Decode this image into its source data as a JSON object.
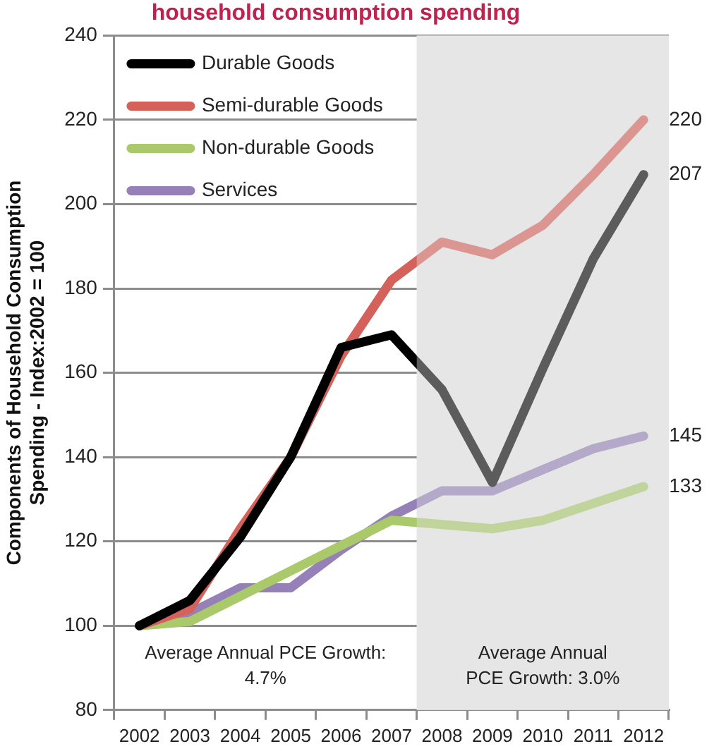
{
  "chart_data": {
    "type": "line",
    "title": "household consumption spending",
    "ylabel": "Components of Household Consumption Spending - Index:2002 = 100",
    "categories": [
      "2002",
      "2003",
      "2004",
      "2005",
      "2006",
      "2007",
      "2008",
      "2009",
      "2010",
      "2011",
      "2012"
    ],
    "series": [
      {
        "name": "Durable Goods",
        "color": "#000000",
        "values": [
          100,
          106,
          121,
          140,
          166,
          169,
          156,
          134,
          161,
          187,
          207
        ],
        "value_labels": [
          null,
          null,
          null,
          null,
          null,
          null,
          null,
          null,
          null,
          null,
          "207"
        ]
      },
      {
        "name": "Semi-durable Goods",
        "color": "#d4625b",
        "values": [
          100,
          104,
          123,
          140,
          164,
          182,
          191,
          188,
          195,
          207,
          220
        ],
        "value_labels": [
          null,
          null,
          null,
          null,
          null,
          null,
          null,
          null,
          null,
          null,
          "220"
        ]
      },
      {
        "name": "Non-durable Goods",
        "color": "#a9c96b",
        "values": [
          100,
          101,
          107,
          113,
          119,
          125,
          124,
          123,
          125,
          129,
          133
        ],
        "value_labels": [
          null,
          null,
          null,
          null,
          null,
          null,
          null,
          null,
          null,
          null,
          "133"
        ]
      },
      {
        "name": "Services",
        "color": "#9580b8",
        "values": [
          100,
          103,
          109,
          109,
          118,
          126,
          132,
          132,
          137,
          142,
          145
        ],
        "value_labels": [
          null,
          null,
          null,
          null,
          null,
          null,
          null,
          null,
          null,
          null,
          "145"
        ]
      }
    ],
    "ylim": [
      80,
      240
    ],
    "yticks": [
      80,
      100,
      120,
      140,
      160,
      180,
      200,
      220,
      240
    ],
    "grid": "y",
    "legend": "top left",
    "bands": [
      {
        "axis": "x",
        "from": "2008",
        "to": "2012",
        "label": "Average Annual PCE Growth: 3.0%",
        "color": "#e6e6e6"
      }
    ],
    "annotations": [
      "Average Annual PCE Growth: 4.7%"
    ]
  }
}
